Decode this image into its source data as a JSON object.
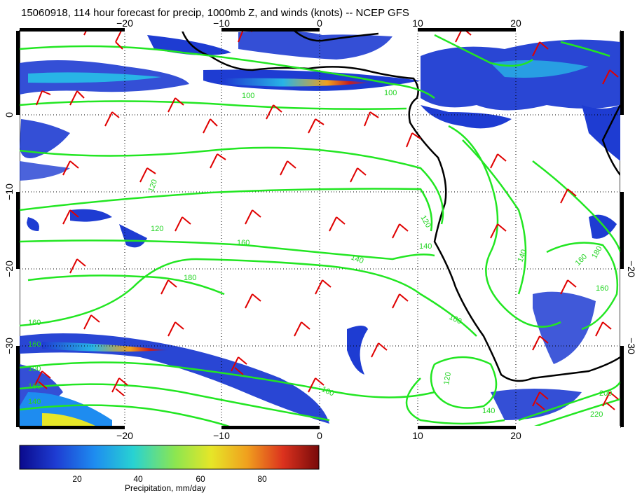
{
  "title": "15060918, 114 hour forecast for precip, 1000mb Z, and winds (knots) -- NCEP GFS",
  "map": {
    "lon_ticks": [
      "−20",
      "−10",
      "0",
      "10",
      "20"
    ],
    "lat_ticks": [
      "0",
      "−10",
      "−20",
      "−30"
    ],
    "lat_ticks_right": [
      "−20",
      "−30"
    ],
    "contour_labels": [
      "100",
      "100",
      "120",
      "120",
      "120",
      "140",
      "140",
      "160",
      "160",
      "160",
      "160",
      "160",
      "160",
      "180",
      "180",
      "140",
      "140",
      "200",
      "220",
      "160",
      "100",
      "120",
      "140",
      "160"
    ],
    "colors": {
      "contour": "#22e622",
      "barb": "#e00000",
      "coast": "#000000",
      "grid": "#000000"
    }
  },
  "colorbar": {
    "label": "Precipitation, mm/day",
    "ticks": [
      "20",
      "40",
      "60",
      "80"
    ],
    "colors": [
      "#0a0a8c",
      "#1e3cd2",
      "#1e8cf0",
      "#28d2d2",
      "#8ce650",
      "#e6e628",
      "#f0a01e",
      "#dc321e",
      "#780a0a"
    ]
  }
}
